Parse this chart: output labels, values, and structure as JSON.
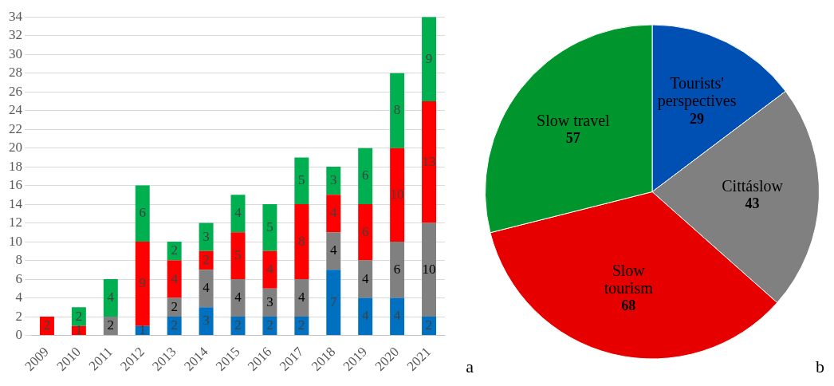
{
  "chart_data": [
    {
      "type": "bar",
      "stacked": true,
      "categories": [
        "2009",
        "2010",
        "2011",
        "2012",
        "2013",
        "2014",
        "2015",
        "2016",
        "2017",
        "2018",
        "2019",
        "2020",
        "2021"
      ],
      "series": [
        {
          "color": "#0070c0",
          "values": [
            0,
            0,
            0,
            1,
            2,
            3,
            2,
            2,
            2,
            7,
            4,
            4,
            2
          ],
          "value_labels": [
            null,
            null,
            null,
            "1",
            "2",
            "3",
            "2",
            "2",
            "2",
            "7",
            "4",
            "4",
            "2"
          ]
        },
        {
          "color": "#808080",
          "values": [
            0,
            0,
            2,
            0,
            2,
            4,
            4,
            3,
            4,
            4,
            4,
            6,
            10
          ],
          "value_labels": [
            null,
            null,
            "2",
            null,
            "2",
            "4",
            "4",
            "3",
            "4",
            "4",
            "4",
            "6",
            "10"
          ]
        },
        {
          "color": "#ff0000",
          "values": [
            2,
            1,
            0,
            9,
            4,
            2,
            5,
            4,
            8,
            4,
            6,
            10,
            13
          ],
          "value_labels": [
            "2",
            "1",
            null,
            "9",
            "4",
            "2",
            "5",
            "4",
            "8",
            "4",
            "6",
            "10",
            "13"
          ]
        },
        {
          "color": "#00b050",
          "values": [
            0,
            2,
            4,
            6,
            2,
            3,
            4,
            5,
            5,
            3,
            6,
            8,
            9
          ],
          "value_labels": [
            null,
            "2",
            "4",
            "6",
            "2",
            "3",
            "4",
            "5",
            "5",
            "3",
            "6",
            "8",
            "9"
          ]
        }
      ],
      "ylim": [
        0,
        34
      ],
      "yticks": [
        0,
        2,
        4,
        6,
        8,
        10,
        12,
        14,
        16,
        18,
        20,
        22,
        24,
        26,
        28,
        30,
        32,
        34
      ],
      "grid": "y",
      "annotations": [
        "a"
      ]
    },
    {
      "type": "pie",
      "categories": [
        "Tourists' perspectives",
        "Cittáslow",
        "Slow tourism",
        "Slow travel"
      ],
      "values": [
        29,
        43,
        68,
        57
      ],
      "colors": [
        "#0050b4",
        "#808080",
        "#e60000",
        "#00962d"
      ],
      "data_labels": true,
      "annotations": [
        "b"
      ]
    }
  ]
}
